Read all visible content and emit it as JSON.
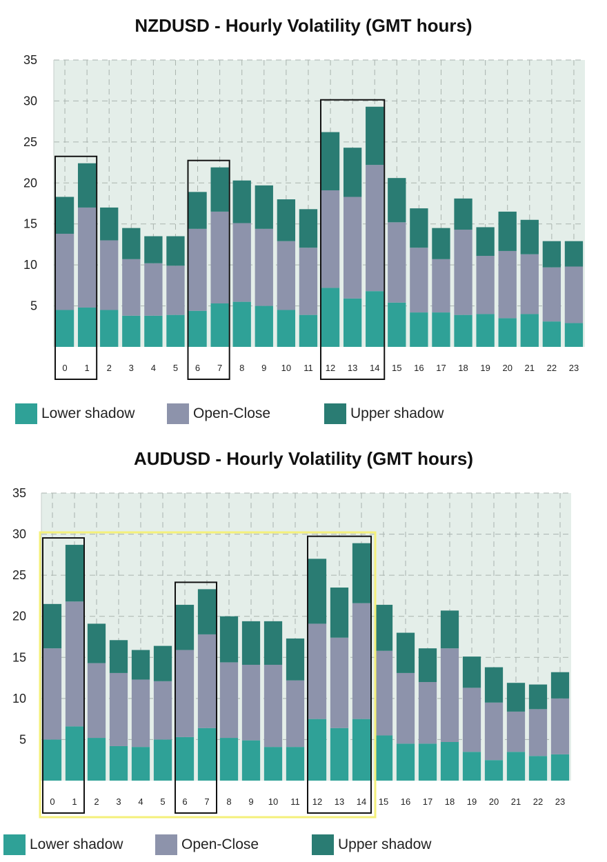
{
  "colors": {
    "plot_bg": "#e4eee9",
    "grid": "#a9b3ae",
    "lower_shadow": "#2fa197",
    "open_close": "#8d93ab",
    "upper_shadow": "#2a7c73",
    "highlight_black": "#111111",
    "highlight_yellow": "#f4f07a"
  },
  "chart_data": [
    {
      "type": "bar",
      "stacked": true,
      "title": "NZDUSD - Hourly Volatility (GMT hours)",
      "categories": [
        "0",
        "1",
        "2",
        "3",
        "4",
        "5",
        "6",
        "7",
        "8",
        "9",
        "10",
        "11",
        "12",
        "13",
        "14",
        "15",
        "16",
        "17",
        "18",
        "19",
        "20",
        "21",
        "22",
        "23"
      ],
      "ylim": [
        0,
        35
      ],
      "yticks": [
        "5",
        "10",
        "15",
        "20",
        "25",
        "30",
        "35"
      ],
      "grid": true,
      "legend_position": "bottom",
      "series": [
        {
          "name": "Lower shadow",
          "values": [
            4.5,
            4.8,
            4.5,
            3.8,
            3.8,
            3.9,
            4.4,
            5.3,
            5.5,
            5.0,
            4.5,
            3.9,
            7.2,
            5.9,
            6.8,
            5.4,
            4.2,
            4.2,
            3.9,
            4.0,
            3.5,
            4.0,
            3.1,
            2.9
          ]
        },
        {
          "name": "Open-Close",
          "values": [
            9.3,
            12.2,
            8.5,
            6.9,
            6.4,
            6.0,
            10.0,
            11.2,
            9.6,
            9.4,
            8.4,
            8.2,
            11.9,
            12.4,
            15.4,
            9.8,
            7.9,
            6.5,
            10.4,
            7.1,
            8.2,
            7.3,
            6.6,
            6.9
          ]
        },
        {
          "name": "Upper shadow",
          "values": [
            4.5,
            5.4,
            4.0,
            3.8,
            3.3,
            3.6,
            4.5,
            5.4,
            5.2,
            5.3,
            5.1,
            4.7,
            7.1,
            6.0,
            7.1,
            5.4,
            4.8,
            3.8,
            3.8,
            3.5,
            4.8,
            4.2,
            3.2,
            3.1
          ]
        }
      ],
      "highlight_groups": [
        [
          "0",
          "1"
        ],
        [
          "6",
          "7"
        ],
        [
          "12",
          "14"
        ]
      ]
    },
    {
      "type": "bar",
      "stacked": true,
      "title": "AUDUSD - Hourly Volatility (GMT hours)",
      "categories": [
        "0",
        "1",
        "2",
        "3",
        "4",
        "5",
        "6",
        "7",
        "8",
        "9",
        "10",
        "11",
        "12",
        "13",
        "14",
        "15",
        "16",
        "17",
        "18",
        "19",
        "20",
        "21",
        "22",
        "23"
      ],
      "ylim": [
        0,
        35
      ],
      "yticks": [
        "5",
        "10",
        "15",
        "20",
        "25",
        "30",
        "35"
      ],
      "grid": true,
      "legend_position": "bottom",
      "series": [
        {
          "name": "Lower shadow",
          "values": [
            5.0,
            6.6,
            5.2,
            4.2,
            4.1,
            5.0,
            5.3,
            6.4,
            5.2,
            4.9,
            4.1,
            4.1,
            7.5,
            6.4,
            7.5,
            5.5,
            4.5,
            4.5,
            4.7,
            3.5,
            2.5,
            3.5,
            3.0,
            3.2
          ]
        },
        {
          "name": "Open-Close",
          "values": [
            11.1,
            15.2,
            9.1,
            8.9,
            8.2,
            7.1,
            10.6,
            11.4,
            9.2,
            9.2,
            10.0,
            8.1,
            11.6,
            11.0,
            14.1,
            10.3,
            8.6,
            7.5,
            11.4,
            7.8,
            7.0,
            4.9,
            5.7,
            6.8
          ]
        },
        {
          "name": "Upper shadow",
          "values": [
            5.4,
            6.9,
            4.8,
            4.0,
            3.6,
            4.3,
            5.5,
            5.5,
            5.6,
            5.3,
            5.3,
            5.1,
            7.9,
            6.1,
            7.3,
            5.6,
            4.9,
            4.1,
            4.6,
            3.8,
            4.3,
            3.5,
            3.0,
            3.2
          ]
        }
      ],
      "highlight_groups": [
        [
          "0",
          "1"
        ],
        [
          "6",
          "7"
        ],
        [
          "12",
          "14"
        ]
      ],
      "highlight_range": [
        "0",
        "14"
      ]
    }
  ]
}
